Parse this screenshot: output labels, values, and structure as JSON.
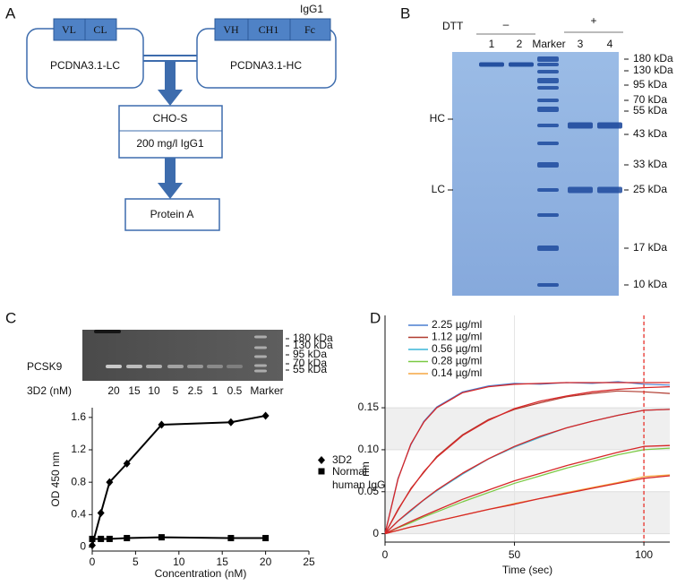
{
  "panel_labels": [
    "A",
    "B",
    "C",
    "D"
  ],
  "diagram": {
    "lc_plasmid": "PCDNA3.1-LC",
    "lc_segments": [
      "VL",
      "CL"
    ],
    "hc_plasmid": "PCDNA3.1-HC",
    "hc_segments": [
      "VH",
      "CH1",
      "Fc"
    ],
    "hc_isotype": "IgG1",
    "cell_line": "CHO-S",
    "yield": "200 mg/l IgG1",
    "purification": "Protein A"
  },
  "gel_b": {
    "dtt_label": "DTT",
    "minus": "–",
    "plus": "+",
    "lanes": [
      "1",
      "2",
      "Marker",
      "3",
      "4"
    ],
    "markers": [
      "180 kDa",
      "130 kDa",
      "95 kDa",
      "70 kDa",
      "55 kDa",
      "43 kDa",
      "33 kDa",
      "25 kDa",
      "17 kDa",
      "10 kDa"
    ],
    "hc_label": "HC",
    "lc_label": "LC"
  },
  "gel_c": {
    "protein": "PCSK9",
    "lane_title": "3D2 (nM)",
    "lanes": [
      "20",
      "15",
      "10",
      "5",
      "2.5",
      "1",
      "0.5",
      "Marker"
    ],
    "markers": [
      "180 kDa",
      "130 kDa",
      "95 kDa",
      "70 kDa",
      "55 kDa"
    ]
  },
  "chart_data": [
    {
      "type": "line",
      "x_label": "Concentration (nM)",
      "y_label": "OD 450 nm",
      "x": [
        0,
        1,
        2,
        4,
        8,
        16,
        20
      ],
      "series": [
        {
          "name": "3D2",
          "color": "#000000",
          "marker": "diamond",
          "values": [
            0.02,
            0.42,
            0.8,
            1.03,
            1.51,
            1.54,
            1.62
          ]
        },
        {
          "name": "Normal human IgG",
          "color": "#000000",
          "marker": "square",
          "values": [
            0.1,
            0.1,
            0.1,
            0.11,
            0.12,
            0.11,
            0.11
          ]
        }
      ],
      "xlim": [
        0,
        25
      ],
      "xticks": [
        0,
        5,
        10,
        15,
        20,
        25
      ],
      "ylim": [
        -0.05,
        1.72
      ],
      "yticks": [
        0,
        0.4,
        0.8,
        1.2,
        1.6
      ]
    },
    {
      "type": "line",
      "x_label": "Time (sec)",
      "y_label": "nm",
      "x": [
        0,
        5,
        10,
        15,
        20,
        30,
        40,
        50,
        60,
        70,
        80,
        90,
        100,
        110
      ],
      "series": [
        {
          "name": "2.25 µg/ml",
          "color": "#4a7fd0",
          "values": [
            0,
            0.066,
            0.106,
            0.134,
            0.151,
            0.169,
            0.176,
            0.179,
            0.178,
            0.18,
            0.179,
            0.181,
            0.178,
            0.177
          ],
          "fit": [
            0,
            0.065,
            0.107,
            0.133,
            0.15,
            0.168,
            0.175,
            0.178,
            0.179,
            0.18,
            0.18,
            0.18,
            0.18,
            0.18
          ]
        },
        {
          "name": "1.12 µg/ml",
          "color": "#b03a2e",
          "values": [
            0,
            0.028,
            0.054,
            0.073,
            0.092,
            0.118,
            0.136,
            0.148,
            0.156,
            0.163,
            0.167,
            0.17,
            0.169,
            0.167
          ],
          "fit": [
            0,
            0.029,
            0.053,
            0.074,
            0.091,
            0.117,
            0.135,
            0.149,
            0.158,
            0.164,
            0.169,
            0.172,
            0.174,
            0.175
          ]
        },
        {
          "name": "0.56 µg/ml",
          "color": "#3ab5d8",
          "values": [
            0,
            0.015,
            0.027,
            0.04,
            0.051,
            0.071,
            0.089,
            0.103,
            0.115,
            0.126,
            0.134,
            0.141,
            0.147,
            0.148
          ],
          "fit": [
            0,
            0.0152,
            0.0281,
            0.0404,
            0.052,
            0.0722,
            0.0894,
            0.104,
            0.116,
            0.126,
            0.134,
            0.141,
            0.147,
            0.148
          ]
        },
        {
          "name": "0.28 µg/ml",
          "color": "#7ac943",
          "values": [
            0,
            0.007,
            0.013,
            0.02,
            0.026,
            0.038,
            0.049,
            0.06,
            0.069,
            0.078,
            0.086,
            0.094,
            0.1,
            0.102
          ],
          "fit": [
            0,
            0.0075,
            0.0146,
            0.0215,
            0.028,
            0.041,
            0.052,
            0.063,
            0.072,
            0.081,
            0.089,
            0.097,
            0.104,
            0.105
          ]
        },
        {
          "name": "0.14 µg/ml",
          "color": "#f5a742",
          "values": [
            0,
            0.004,
            0.008,
            0.011,
            0.015,
            0.022,
            0.029,
            0.036,
            0.042,
            0.049,
            0.055,
            0.061,
            0.068,
            0.07
          ],
          "fit": [
            0,
            0.004,
            0.008,
            0.011,
            0.015,
            0.022,
            0.029,
            0.035,
            0.042,
            0.048,
            0.054,
            0.06,
            0.066,
            0.069
          ]
        }
      ],
      "fit_color": "#d62728",
      "vline": 100,
      "vline_color": "#e8312a",
      "xlim": [
        0,
        110
      ],
      "xticks": [
        0,
        50,
        100
      ],
      "ylim": [
        -0.01,
        0.26
      ],
      "yticks": [
        0,
        0.05,
        {
          "value": 0.1,
          "label": "0.10"
        },
        0.15
      ]
    }
  ]
}
